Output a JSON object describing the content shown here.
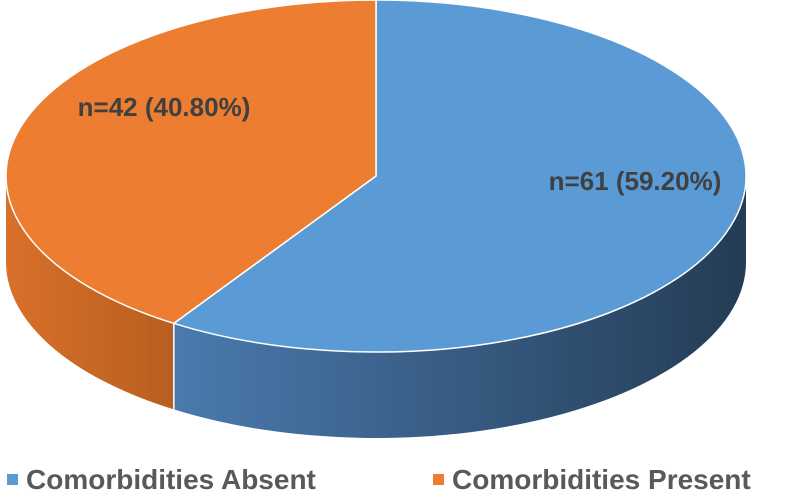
{
  "chart_data": {
    "type": "pie",
    "style": "3d",
    "slices": [
      {
        "name": "Comorbidities Absent",
        "n": 61,
        "percent": 59.2,
        "label": "n=61 (59.20%)",
        "color": "#5B9BD5",
        "side_color_light": "#4A7AAE",
        "side_color_dark": "#243C55"
      },
      {
        "name": "Comorbidities Present",
        "n": 42,
        "percent": 40.8,
        "label": "n=42 (40.80%)",
        "color": "#ED7D31",
        "side_color_light": "#D8702A",
        "side_color_dark": "#B85E20"
      }
    ],
    "legend_position": "bottom"
  }
}
